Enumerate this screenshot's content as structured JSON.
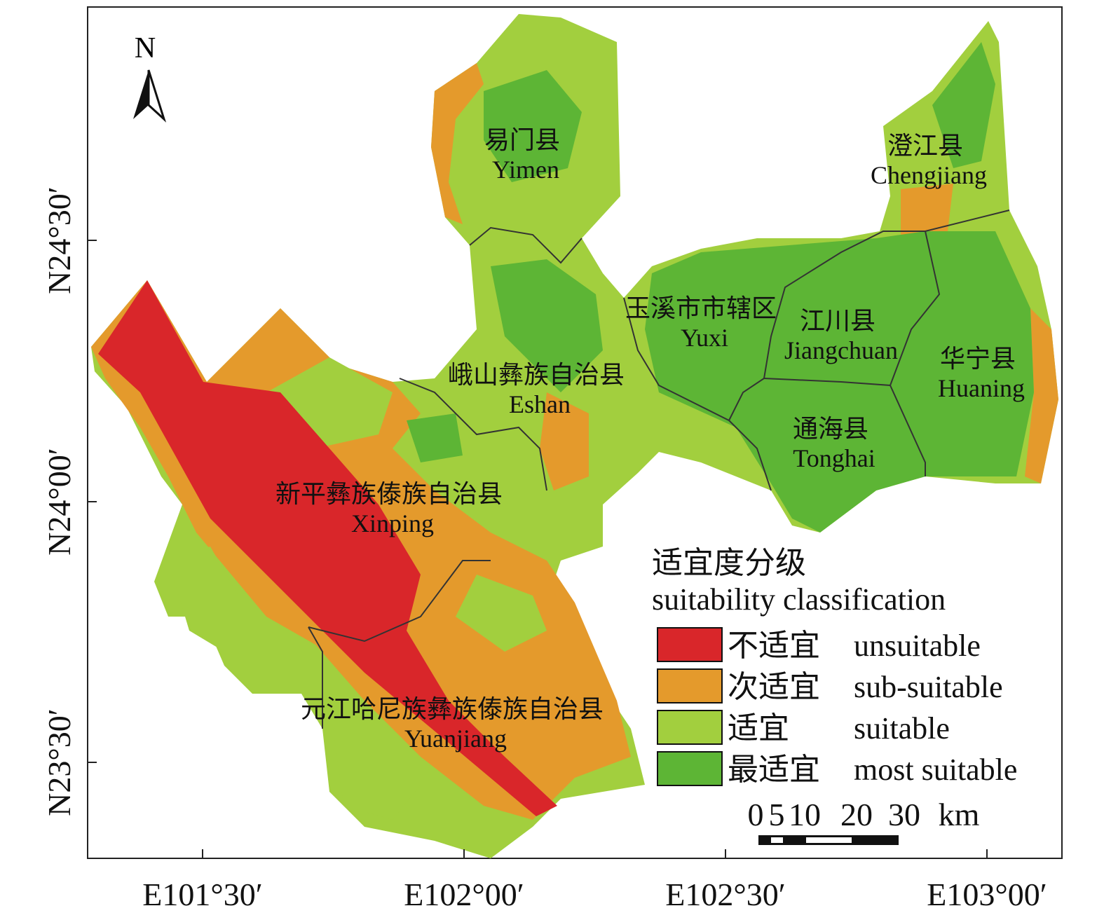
{
  "map": {
    "north_arrow": "N",
    "regions": [
      {
        "name_zh": "易门县",
        "name_en": "Yimen"
      },
      {
        "name_zh": "澄江县",
        "name_en": "Chengjiang"
      },
      {
        "name_zh": "玉溪市市辖区",
        "name_en": "Yuxi"
      },
      {
        "name_zh": "江川县",
        "name_en": "Jiangchuan"
      },
      {
        "name_zh": "华宁县",
        "name_en": "Huaning"
      },
      {
        "name_zh": "峨山彝族自治县",
        "name_en": "Eshan"
      },
      {
        "name_zh": "通海县",
        "name_en": "Tonghai"
      },
      {
        "name_zh": "新平彝族傣族自治县",
        "name_en": "Xinping"
      },
      {
        "name_zh": "元江哈尼族彝族傣族自治县",
        "name_en": "Yuanjiang"
      }
    ],
    "legend": {
      "title_zh": "适宜度分级",
      "title_en": "suitability classification",
      "items": [
        {
          "zh": "不适宜",
          "en": "unsuitable",
          "color": "#d9262a"
        },
        {
          "zh": "次适宜",
          "en": "sub-suitable",
          "color": "#e49a2c"
        },
        {
          "zh": "适宜",
          "en": "suitable",
          "color": "#a2cf3e"
        },
        {
          "zh": "最适宜",
          "en": "most suitable",
          "color": "#5db535"
        }
      ]
    },
    "scale_bar": {
      "labels": [
        "0",
        "5",
        "10",
        "20",
        "30"
      ],
      "unit": "km"
    },
    "x_axis_labels": [
      "E101°30′",
      "E102°00′",
      "E102°30′",
      "E103°00′"
    ],
    "y_axis_labels": [
      "N24°30′",
      "N24°00′",
      "N23°30′"
    ]
  }
}
